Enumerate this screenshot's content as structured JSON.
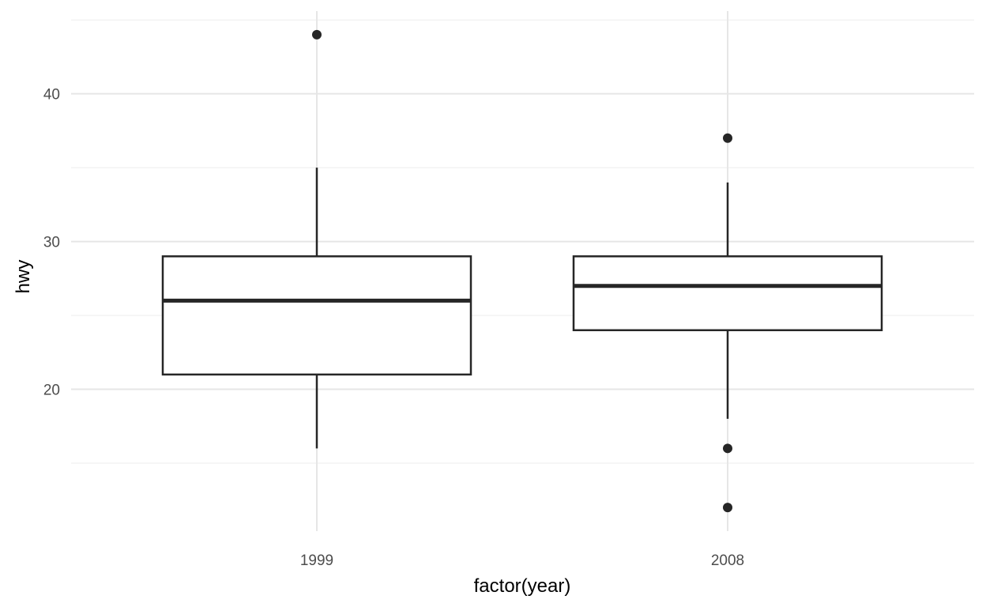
{
  "chart_data": {
    "type": "box",
    "title": "",
    "xlabel": "factor(year)",
    "ylabel": "hwy",
    "categories": [
      "1999",
      "2008"
    ],
    "boxes": [
      {
        "category": "1999",
        "lower_whisker": 16,
        "q1": 21,
        "median": 26,
        "q3": 29,
        "upper_whisker": 35,
        "outliers": [
          44
        ]
      },
      {
        "category": "2008",
        "lower_whisker": 18,
        "q1": 24,
        "median": 27,
        "q3": 29,
        "upper_whisker": 34,
        "outliers": [
          37,
          16,
          12
        ]
      }
    ],
    "y_ticks": [
      20,
      30,
      40
    ],
    "ylim": [
      10.4,
      45.6
    ],
    "grid": true,
    "colors": {
      "box_stroke": "#262626",
      "grid_major": "#e6e6e6",
      "grid_minor": "#eeeeee",
      "point": "#262626"
    }
  }
}
